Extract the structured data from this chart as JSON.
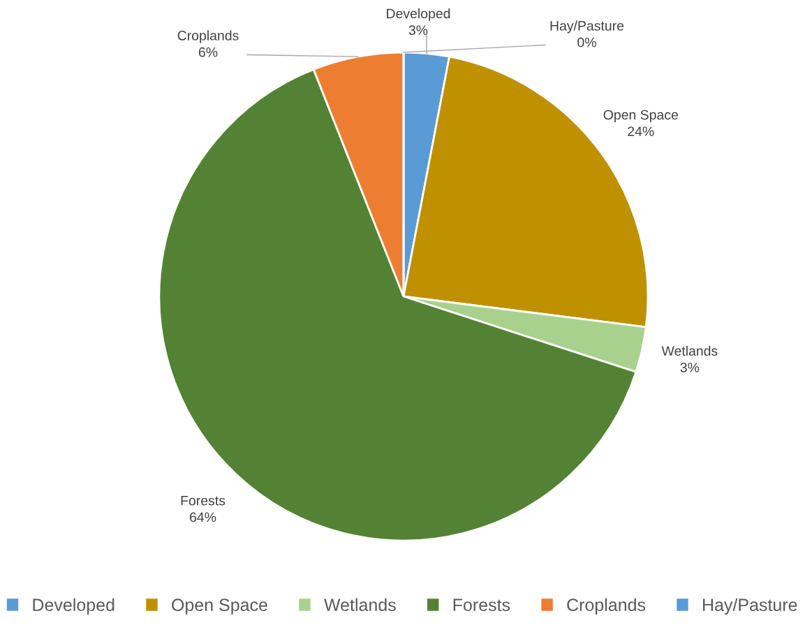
{
  "chart_data": {
    "type": "pie",
    "categories": [
      "Developed",
      "Open Space",
      "Wetlands",
      "Forests",
      "Croplands",
      "Hay/Pasture"
    ],
    "values": [
      3,
      24,
      3,
      64,
      6,
      0
    ],
    "value_labels": [
      "3%",
      "24%",
      "3%",
      "64%",
      "6%",
      "0%"
    ],
    "colors": [
      "#5b9bd5",
      "#bf9000",
      "#a9d18e",
      "#548235",
      "#ed7d31",
      "#5b9bd5"
    ],
    "legend": "bottom"
  }
}
